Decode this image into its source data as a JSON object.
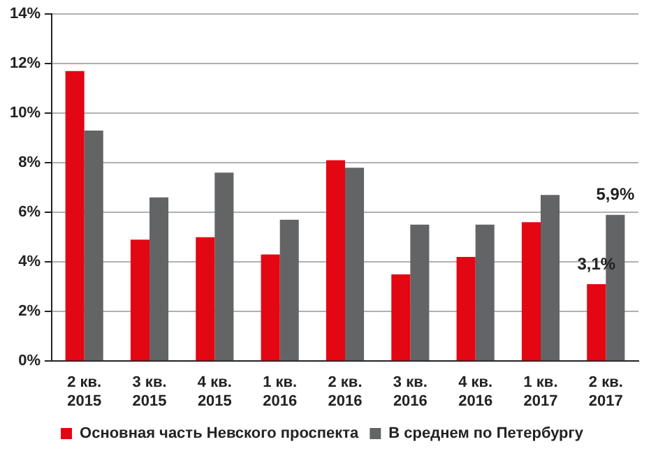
{
  "chart_data": {
    "type": "bar",
    "categories": [
      "2 кв. 2015",
      "3 кв. 2015",
      "4 кв. 2015",
      "1 кв. 2016",
      "2 кв. 2016",
      "3 кв. 2016",
      "4 кв. 2016",
      "1 кв. 2017",
      "2 кв. 2017"
    ],
    "series": [
      {
        "name": "Основная часть Невского проспекта",
        "color": "#e30613",
        "values": [
          11.7,
          4.9,
          5.0,
          4.3,
          8.1,
          3.5,
          4.2,
          5.6,
          3.1
        ],
        "value_labels": [
          null,
          null,
          null,
          null,
          null,
          null,
          null,
          null,
          "3,1%"
        ]
      },
      {
        "name": "В среднем по Петербургу",
        "color": "#636466",
        "values": [
          9.3,
          6.6,
          7.6,
          5.7,
          7.8,
          5.5,
          5.5,
          6.7,
          5.9
        ],
        "value_labels": [
          null,
          null,
          null,
          null,
          null,
          null,
          null,
          null,
          "5,9%"
        ]
      }
    ],
    "ylim": [
      0,
      14
    ],
    "yticks": [
      {
        "value": 0,
        "label": "0%"
      },
      {
        "value": 2,
        "label": "2%"
      },
      {
        "value": 4,
        "label": "4%"
      },
      {
        "value": 6,
        "label": "6%"
      },
      {
        "value": 8,
        "label": "8%"
      },
      {
        "value": 10,
        "label": "10%"
      },
      {
        "value": 12,
        "label": "12%"
      },
      {
        "value": 14,
        "label": "14%"
      }
    ],
    "grid": "y",
    "legend": "bottom"
  }
}
